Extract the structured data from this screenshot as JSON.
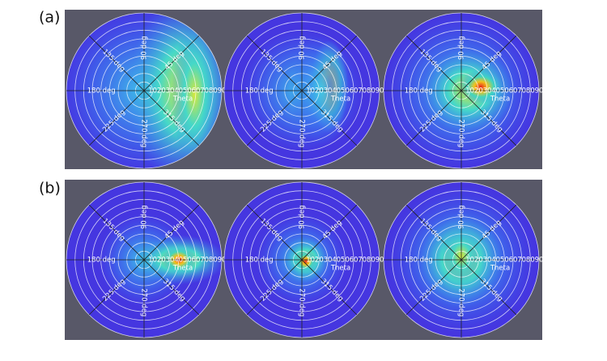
{
  "panels": [
    {
      "label": "(a)"
    },
    {
      "label": "(b)"
    }
  ],
  "polar": {
    "angle_labels": [
      "90 deg",
      "45 deg",
      "135 deg",
      "180 deg",
      "225 deg",
      "270 deg",
      "315 deg"
    ],
    "radial_labels": [
      "10",
      "20",
      "30",
      "40",
      "50",
      "60",
      "70",
      "80",
      "90"
    ],
    "radial_title": "Theta"
  }
}
